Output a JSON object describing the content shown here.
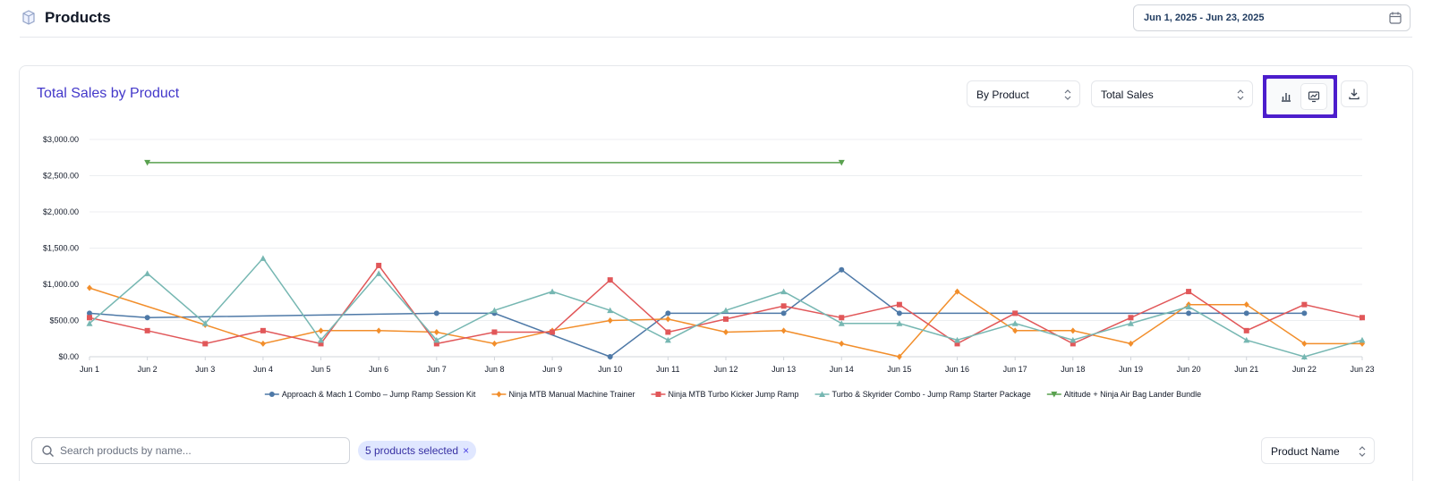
{
  "header": {
    "title": "Products",
    "date_range": "Jun 1, 2025 - Jun 23, 2025"
  },
  "card": {
    "title": "Total Sales by Product",
    "group_select": "By Product",
    "metric_select": "Total Sales"
  },
  "colors": {
    "accent": "#4338ca",
    "highlight": "#4c1dcc",
    "chip_bg": "#e0e7ff"
  },
  "icons": {
    "page": "package-icon",
    "date": "calendar-icon",
    "bar_view": "bar-chart-icon",
    "line_view": "line-chart-icon",
    "download": "download-icon",
    "search": "search-icon"
  },
  "chart_data": {
    "type": "line",
    "x": [
      "Jun 1",
      "Jun 2",
      "Jun 3",
      "Jun 4",
      "Jun 5",
      "Jun 6",
      "Jun 7",
      "Jun 8",
      "Jun 9",
      "Jun 10",
      "Jun 11",
      "Jun 12",
      "Jun 13",
      "Jun 14",
      "Jun 15",
      "Jun 16",
      "Jun 17",
      "Jun 18",
      "Jun 19",
      "Jun 20",
      "Jun 21",
      "Jun 22",
      "Jun 23"
    ],
    "y_ticks": [
      "$0.00",
      "$500.00",
      "$1,000.00",
      "$1,500.00",
      "$2,000.00",
      "$2,500.00",
      "$3,000.00"
    ],
    "ylim": [
      0,
      3000
    ],
    "grid": "horizontal",
    "legend": "bottom",
    "series": [
      {
        "name": "Approach & Mach 1 Combo – Jump Ramp Session Kit",
        "color": "#4e79a7",
        "marker": "circle",
        "points": [
          [
            0,
            600
          ],
          [
            1,
            540
          ],
          [
            6,
            600
          ],
          [
            7,
            600
          ],
          [
            9,
            0
          ],
          [
            10,
            600
          ],
          [
            12,
            600
          ],
          [
            13,
            1200
          ],
          [
            14,
            600
          ],
          [
            19,
            600
          ],
          [
            20,
            600
          ],
          [
            21,
            600
          ]
        ]
      },
      {
        "name": "Ninja MTB Manual Machine Trainer",
        "color": "#f28e2b",
        "marker": "diamond",
        "points": [
          [
            0,
            950
          ],
          [
            2,
            440
          ],
          [
            3,
            180
          ],
          [
            4,
            360
          ],
          [
            5,
            360
          ],
          [
            6,
            340
          ],
          [
            7,
            180
          ],
          [
            8,
            360
          ],
          [
            9,
            500
          ],
          [
            10,
            520
          ],
          [
            11,
            340
          ],
          [
            12,
            360
          ],
          [
            13,
            180
          ],
          [
            14,
            0
          ],
          [
            15,
            900
          ],
          [
            16,
            360
          ],
          [
            17,
            360
          ],
          [
            18,
            180
          ],
          [
            19,
            720
          ],
          [
            20,
            720
          ],
          [
            21,
            180
          ],
          [
            22,
            180
          ]
        ]
      },
      {
        "name": "Ninja MTB Turbo Kicker Jump Ramp",
        "color": "#e15759",
        "marker": "square",
        "points": [
          [
            0,
            540
          ],
          [
            1,
            360
          ],
          [
            2,
            180
          ],
          [
            3,
            360
          ],
          [
            4,
            180
          ],
          [
            5,
            1260
          ],
          [
            6,
            180
          ],
          [
            7,
            340
          ],
          [
            8,
            340
          ],
          [
            9,
            1060
          ],
          [
            10,
            340
          ],
          [
            11,
            520
          ],
          [
            12,
            700
          ],
          [
            13,
            540
          ],
          [
            14,
            720
          ],
          [
            15,
            180
          ],
          [
            16,
            600
          ],
          [
            17,
            180
          ],
          [
            18,
            540
          ],
          [
            19,
            900
          ],
          [
            20,
            360
          ],
          [
            21,
            720
          ],
          [
            22,
            540
          ]
        ]
      },
      {
        "name": "Turbo & Skyrider Combo - Jump Ramp Starter Package",
        "color": "#76b7b2",
        "marker": "triangle",
        "points": [
          [
            0,
            460
          ],
          [
            1,
            1150
          ],
          [
            2,
            460
          ],
          [
            3,
            1360
          ],
          [
            4,
            230
          ],
          [
            5,
            1150
          ],
          [
            6,
            230
          ],
          [
            7,
            640
          ],
          [
            8,
            900
          ],
          [
            9,
            640
          ],
          [
            10,
            230
          ],
          [
            11,
            640
          ],
          [
            12,
            900
          ],
          [
            13,
            460
          ],
          [
            14,
            460
          ],
          [
            15,
            230
          ],
          [
            16,
            460
          ],
          [
            17,
            230
          ],
          [
            18,
            460
          ],
          [
            19,
            690
          ],
          [
            20,
            230
          ],
          [
            21,
            0
          ],
          [
            22,
            230
          ]
        ]
      },
      {
        "name": "Altitude + Ninja Air Bag Lander Bundle",
        "color": "#59a14f",
        "marker": "triangle-down",
        "points": [
          [
            1,
            2680
          ],
          [
            13,
            2680
          ]
        ]
      }
    ]
  },
  "filters": {
    "search_placeholder": "Search products by name...",
    "search_value": "",
    "chip_label": "5 products selected",
    "chip_close": "×",
    "sort_select": "Product Name"
  }
}
